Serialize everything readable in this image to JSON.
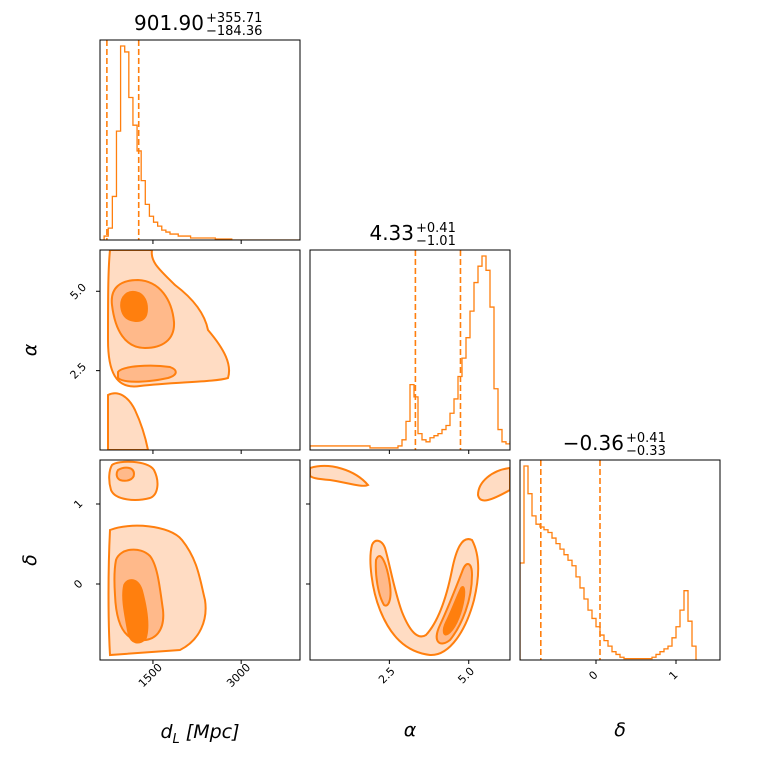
{
  "chart_data": {
    "type": "corner",
    "parameters": [
      {
        "key": "dL",
        "label_main": "d",
        "label_sub": "L",
        "label_unit": " [Mpc]",
        "range": [
          600,
          4000
        ],
        "ticks": [
          1500,
          3000
        ],
        "tick_labels": [
          "1500",
          "3000"
        ]
      },
      {
        "key": "alpha",
        "label_main": "α",
        "range": [
          0,
          6.3
        ],
        "ticks": [
          2.5,
          5.0
        ],
        "tick_labels": [
          "2.5",
          "5.0"
        ]
      },
      {
        "key": "delta",
        "label_main": "δ",
        "range": [
          -0.95,
          1.55
        ],
        "ticks": [
          0,
          1
        ],
        "tick_labels": [
          "0",
          "1"
        ]
      }
    ],
    "titles": [
      {
        "median": "901.90",
        "plus": "+355.71",
        "minus": "−184.36"
      },
      {
        "median": "4.33",
        "plus": "+0.41",
        "minus": "−1.01"
      },
      {
        "median": "−0.36",
        "plus": "+0.41",
        "minus": "−0.33"
      }
    ],
    "quantile_lines": {
      "dL": [
        717,
        1258
      ],
      "alpha": [
        3.32,
        4.74
      ],
      "delta": [
        -0.69,
        0.05
      ]
    },
    "histograms": {
      "dL": {
        "bin_start": 600,
        "bin_width": 70,
        "counts": [
          0,
          2,
          6,
          22,
          55,
          98,
          95,
          72,
          58,
          45,
          30,
          18,
          12,
          9,
          7,
          5,
          4,
          3,
          3,
          2,
          2,
          2,
          1,
          1,
          1,
          1,
          1,
          1,
          0.5,
          0.5,
          0.5,
          0.5,
          0,
          0,
          0,
          0,
          0,
          0,
          0,
          0,
          0,
          0,
          0,
          0,
          0,
          0,
          0,
          0,
          0
        ]
      },
      "alpha": {
        "bin_start": 0,
        "bin_width": 0.126,
        "counts": [
          2,
          2,
          2,
          2,
          2,
          2,
          2,
          2,
          2,
          2,
          2,
          2,
          2,
          2,
          2,
          1,
          1,
          1,
          1,
          1,
          1,
          1,
          2,
          5,
          14,
          32,
          26,
          8,
          5,
          4,
          6,
          7,
          8,
          10,
          12,
          18,
          25,
          36,
          45,
          55,
          68,
          82,
          90,
          95,
          88,
          70,
          30,
          10,
          4,
          3,
          4,
          3,
          2,
          2,
          1
        ]
      },
      "delta": {
        "bin_start": -0.95,
        "bin_width": 0.05,
        "counts": [
          35,
          70,
          60,
          52,
          49,
          48,
          47,
          46,
          44,
          42,
          40,
          38,
          36,
          34,
          30,
          26,
          22,
          18,
          15,
          12,
          9,
          7,
          5,
          3,
          2,
          1,
          0.5,
          0.5,
          0.5,
          0.5,
          0.5,
          0.5,
          0.5,
          1,
          2,
          3,
          4,
          5,
          8,
          12,
          18,
          25,
          14,
          5
        ]
      }
    },
    "series_color": "#ff7f0e"
  }
}
